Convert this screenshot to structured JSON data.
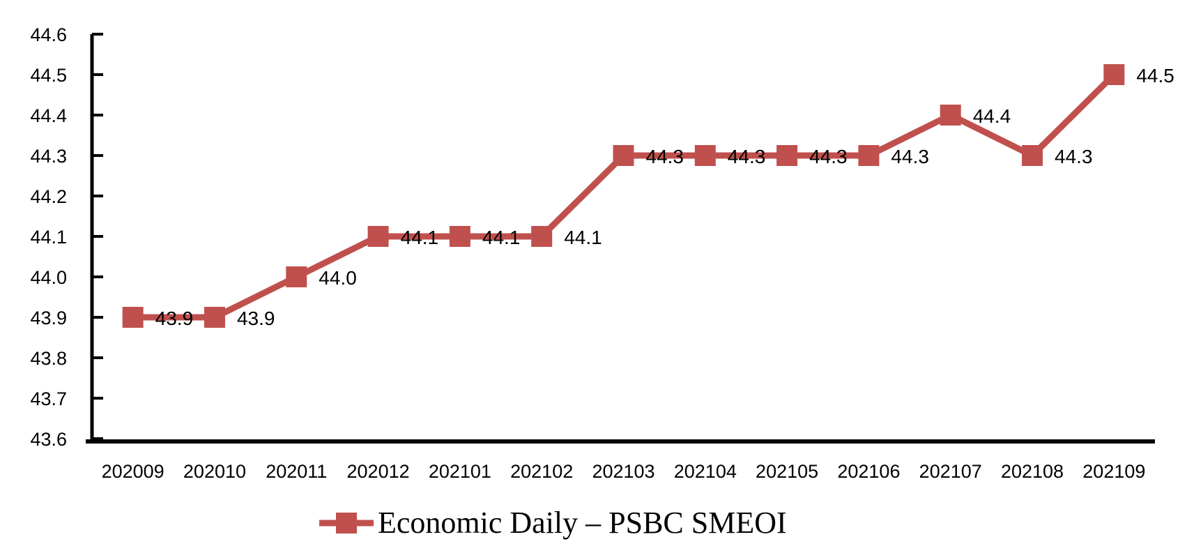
{
  "chart_data": {
    "type": "line",
    "categories": [
      "202009",
      "202010",
      "202011",
      "202012",
      "202101",
      "202102",
      "202103",
      "202104",
      "202105",
      "202106",
      "202107",
      "202108",
      "202109"
    ],
    "series": [
      {
        "name": "Economic Daily – PSBC SMEOI",
        "values": [
          43.9,
          43.9,
          44.0,
          44.1,
          44.1,
          44.1,
          44.3,
          44.3,
          44.3,
          44.3,
          44.4,
          44.3,
          44.5
        ],
        "value_labels": [
          "43.9",
          "43.9",
          "44.0",
          "44.1",
          "44.1",
          "44.1",
          "44.3",
          "44.3",
          "44.3",
          "44.3",
          "44.4",
          "44.3",
          "44.5"
        ],
        "color": "#C0504D",
        "marker": "square"
      }
    ],
    "ylim": [
      43.6,
      44.6
    ],
    "ytick_step": 0.1,
    "ytick_labels": [
      "43.6",
      "43.7",
      "43.8",
      "43.9",
      "44.0",
      "44.1",
      "44.2",
      "44.3",
      "44.4",
      "44.5",
      "44.6"
    ],
    "xlabel": "",
    "ylabel": "",
    "title": "",
    "grid": false,
    "legend_position": "bottom",
    "axis_color": "#000000",
    "label_color": "#000000",
    "background_color": "#FFFFFF"
  }
}
